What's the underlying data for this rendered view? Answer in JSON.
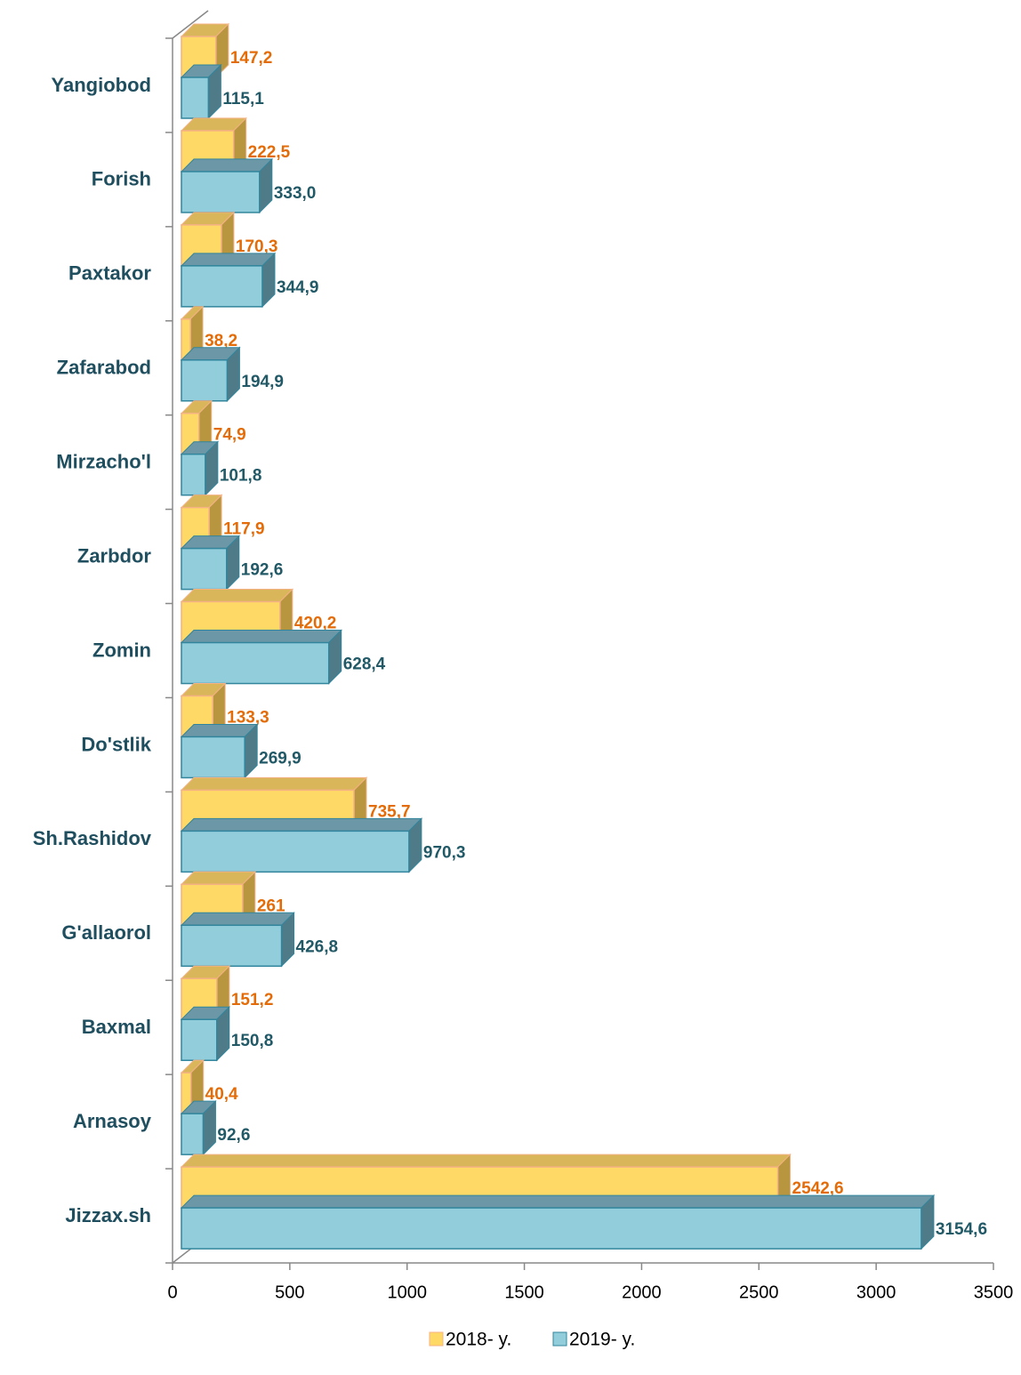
{
  "chart_data": {
    "type": "bar3d_horizontal",
    "categories": [
      "Yangiobod",
      "Forish",
      "Paxtakor",
      "Zafarabod",
      "Mirzacho'l",
      "Zarbdor",
      "Zomin",
      "Do'stlik",
      "Sh.Rashidov",
      "G'allaorol",
      "Baxmal",
      "Arnasoy",
      "Jizzax.sh"
    ],
    "series": [
      {
        "name": "2018- y.",
        "color": "#ffd966",
        "values": [
          147.2,
          222.5,
          170.3,
          38.2,
          74.9,
          117.9,
          420.2,
          133.3,
          735.7,
          261,
          151.2,
          40.4,
          2542.6
        ],
        "value_labels": [
          "147,2",
          "222,5",
          "170,3",
          "38,2",
          "74,9",
          "117,9",
          "420,2",
          "133,3",
          "735,7",
          "261",
          "151,2",
          "40,4",
          "2542,6"
        ]
      },
      {
        "name": "2019- y.",
        "color": "#92cddc",
        "values": [
          115.1,
          333.0,
          344.9,
          194.9,
          101.8,
          192.6,
          628.4,
          269.9,
          970.3,
          426.8,
          150.8,
          92.6,
          3154.6
        ],
        "value_labels": [
          "115,1",
          "333,0",
          "344,9",
          "194,9",
          "101,8",
          "192,6",
          "628,4",
          "269,9",
          "970,3",
          "426,8",
          "150,8",
          "92,6",
          "3154,6"
        ]
      }
    ],
    "xlim": [
      0,
      3500
    ],
    "xticks": [
      0,
      500,
      1000,
      1500,
      2000,
      2500,
      3000,
      3500
    ],
    "grid": false,
    "legend": "bottom"
  }
}
